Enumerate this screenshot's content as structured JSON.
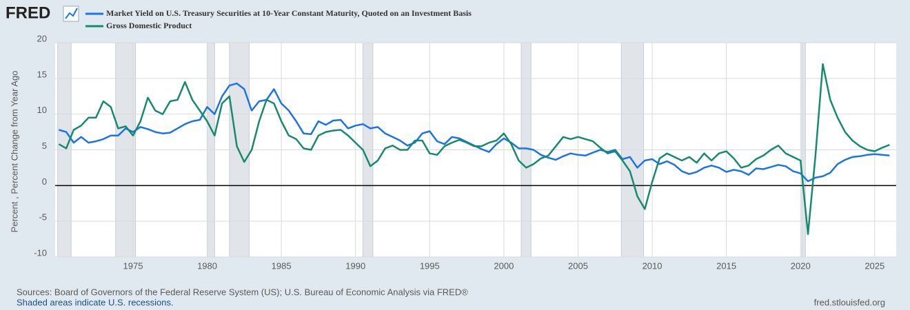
{
  "brand": "FRED",
  "chart_data": {
    "type": "line",
    "y_label": "Percent , Percent Change from Year Ago",
    "x": [
      1970.0,
      1970.5,
      1971.0,
      1971.5,
      1972.0,
      1972.5,
      1973.0,
      1973.5,
      1974.0,
      1974.5,
      1975.0,
      1975.5,
      1976.0,
      1976.5,
      1977.0,
      1977.5,
      1978.0,
      1978.5,
      1979.0,
      1979.5,
      1980.0,
      1980.5,
      1981.0,
      1981.5,
      1982.0,
      1982.5,
      1983.0,
      1983.5,
      1984.0,
      1984.5,
      1985.0,
      1985.5,
      1986.0,
      1986.5,
      1987.0,
      1987.5,
      1988.0,
      1988.5,
      1989.0,
      1989.5,
      1990.0,
      1990.5,
      1991.0,
      1991.5,
      1992.0,
      1992.5,
      1993.0,
      1993.5,
      1994.0,
      1994.5,
      1995.0,
      1995.5,
      1996.0,
      1996.5,
      1997.0,
      1997.5,
      1998.0,
      1998.5,
      1999.0,
      1999.5,
      2000.0,
      2000.5,
      2001.0,
      2001.5,
      2002.0,
      2002.5,
      2003.0,
      2003.5,
      2004.0,
      2004.5,
      2005.0,
      2005.5,
      2006.0,
      2006.5,
      2007.0,
      2007.5,
      2008.0,
      2008.5,
      2009.0,
      2009.5,
      2010.0,
      2010.5,
      2011.0,
      2011.5,
      2012.0,
      2012.5,
      2013.0,
      2013.5,
      2014.0,
      2014.5,
      2015.0,
      2015.5,
      2016.0,
      2016.5,
      2017.0,
      2017.5,
      2018.0,
      2018.5,
      2019.0,
      2019.5,
      2020.0,
      2020.5,
      2021.0,
      2021.5,
      2022.0,
      2022.5,
      2023.0,
      2023.5,
      2024.0,
      2024.5,
      2025.0,
      2025.5,
      2026.0
    ],
    "series": [
      {
        "name": "Market Yield on U.S. Treasury Securities at 10-Year Constant Maturity, Quoted on an Investment Basis",
        "color": "#1a73e8",
        "values": [
          7.8,
          7.5,
          6.0,
          6.8,
          6.0,
          6.2,
          6.5,
          7.0,
          7.0,
          8.0,
          7.5,
          8.2,
          7.9,
          7.5,
          7.3,
          7.4,
          8.0,
          8.6,
          9.0,
          9.2,
          11.0,
          10.0,
          12.5,
          14.0,
          14.3,
          13.5,
          10.5,
          11.8,
          12.0,
          13.5,
          11.5,
          10.5,
          9.0,
          7.3,
          7.2,
          9.0,
          8.5,
          9.1,
          9.2,
          8.0,
          8.4,
          8.6,
          8.0,
          8.2,
          7.3,
          6.8,
          6.3,
          5.6,
          6.0,
          7.3,
          7.6,
          6.2,
          5.8,
          6.8,
          6.6,
          6.1,
          5.6,
          5.1,
          4.7,
          5.8,
          6.6,
          6.0,
          5.2,
          5.2,
          5.0,
          4.3,
          3.9,
          3.6,
          4.1,
          4.5,
          4.3,
          4.2,
          4.6,
          5.0,
          4.7,
          5.0,
          3.7,
          4.0,
          2.5,
          3.5,
          3.7,
          3.0,
          3.4,
          2.9,
          2.0,
          1.6,
          1.9,
          2.5,
          2.8,
          2.5,
          1.9,
          2.2,
          2.0,
          1.5,
          2.4,
          2.3,
          2.6,
          2.9,
          2.7,
          2.0,
          1.7,
          0.6,
          1.1,
          1.3,
          1.8,
          3.0,
          3.6,
          4.0,
          4.1,
          4.3,
          4.4,
          4.3,
          4.2
        ]
      },
      {
        "name": "Gross Domestic Product",
        "color": "#168a6e",
        "values": [
          5.8,
          5.2,
          7.8,
          8.4,
          9.5,
          9.5,
          11.8,
          11.0,
          8.0,
          8.3,
          7.0,
          9.0,
          12.3,
          10.5,
          10.0,
          11.8,
          12.0,
          14.5,
          12.0,
          10.5,
          9.0,
          7.0,
          11.5,
          12.5,
          5.5,
          3.3,
          5.0,
          9.0,
          12.0,
          11.5,
          9.0,
          7.0,
          6.5,
          5.2,
          5.0,
          7.0,
          7.5,
          7.7,
          7.8,
          7.0,
          6.0,
          5.0,
          2.7,
          3.5,
          5.2,
          5.6,
          5.0,
          5.0,
          6.3,
          6.3,
          4.5,
          4.3,
          5.5,
          6.0,
          6.4,
          6.0,
          5.5,
          5.5,
          6.0,
          6.3,
          7.3,
          5.8,
          3.5,
          2.5,
          3.0,
          3.8,
          4.2,
          5.5,
          6.8,
          6.5,
          6.8,
          6.5,
          6.2,
          5.3,
          4.5,
          4.8,
          3.5,
          2.0,
          -1.5,
          -3.3,
          0.5,
          3.8,
          4.5,
          4.0,
          3.5,
          4.0,
          3.2,
          4.5,
          3.5,
          4.5,
          4.8,
          3.8,
          2.5,
          2.8,
          3.7,
          4.2,
          5.0,
          5.6,
          4.5,
          4.0,
          3.5,
          -6.8,
          4.0,
          17.0,
          12.0,
          9.5,
          7.5,
          6.3,
          5.5,
          5.0,
          4.8,
          5.3,
          5.7
        ]
      }
    ],
    "recessions": [
      [
        1969.92,
        1970.83
      ],
      [
        1973.83,
        1975.17
      ],
      [
        1980.0,
        1980.5
      ],
      [
        1981.5,
        1982.83
      ],
      [
        1990.5,
        1991.17
      ],
      [
        2001.17,
        2001.83
      ],
      [
        2007.92,
        2009.42
      ],
      [
        2020.08,
        2020.33
      ]
    ],
    "xlim": [
      1969.75,
      2026.45
    ],
    "xticks": [
      1975,
      1980,
      1985,
      1990,
      1995,
      2000,
      2005,
      2010,
      2015,
      2020,
      2025
    ],
    "ylim": [
      -10,
      20
    ],
    "yticks": [
      -10,
      -5,
      0,
      5,
      10,
      15,
      20
    ],
    "grid": true
  },
  "footer": {
    "sources": "Sources: Board of Governors of the Federal Reserve System (US); U.S. Bureau of Economic Analysis via FRED®",
    "note": "Shaded areas indicate U.S. recessions.",
    "site": "fred.stlouisfed.org"
  }
}
